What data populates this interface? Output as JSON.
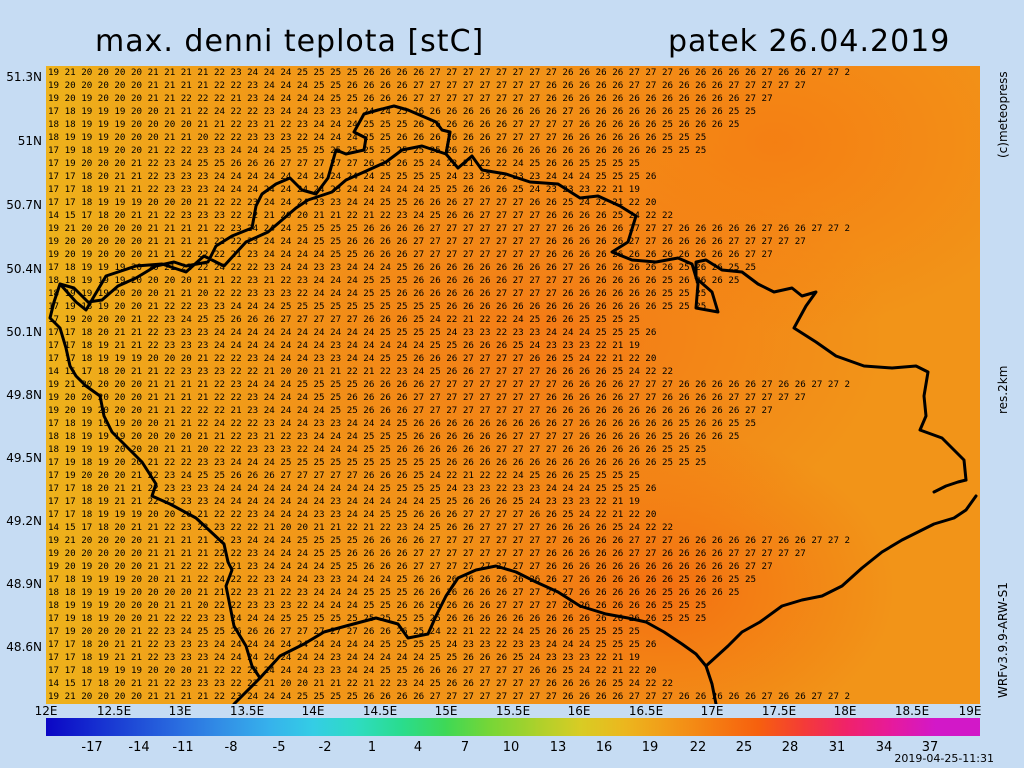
{
  "header": {
    "title": "max. denni teplota [stC]",
    "date": "patek 26.04.2019"
  },
  "side": {
    "copyright": "(c)meteopress",
    "resolution": "res.2km",
    "model": "WRFv3.9.9-ARW-S1"
  },
  "axes": {
    "lat_labels": [
      "51.3N",
      "51N",
      "50.7N",
      "50.4N",
      "50.1N",
      "49.8N",
      "49.5N",
      "49.2N",
      "48.9N",
      "48.6N"
    ],
    "lon_labels": [
      "12E",
      "12.5E",
      "13E",
      "13.5E",
      "14E",
      "14.5E",
      "15E",
      "15.5E",
      "16E",
      "16.5E",
      "17E",
      "17.5E",
      "18E",
      "18.5E",
      "19E"
    ],
    "lat_range": [
      48.3,
      51.4
    ],
    "lon_range": [
      12,
      19
    ]
  },
  "colorbar": {
    "labels": [
      "-17",
      "-14",
      "-11",
      "-8",
      "-5",
      "-2",
      "1",
      "4",
      "7",
      "10",
      "13",
      "16",
      "19",
      "22",
      "25",
      "28",
      "31",
      "34",
      "37"
    ],
    "colors": [
      "#0b06c4",
      "#1429cf",
      "#1f4cd7",
      "#2a6ee0",
      "#3290e6",
      "#36b1ec",
      "#34cde5",
      "#2edcc1",
      "#2adc8d",
      "#3fd855",
      "#78d636",
      "#aad12c",
      "#d8cc24",
      "#ecb71e",
      "#f29a18",
      "#f57d12",
      "#f6600e",
      "#f43c36",
      "#f0226a",
      "#e61a9c",
      "#d218c8"
    ]
  },
  "footer": {
    "run_stamp": "2019-04-25-11:31"
  },
  "map_data": {
    "field": "max daily temperature",
    "unit": "stC",
    "grid_columns": 57,
    "grid_rows": 50,
    "sample_rows": [
      "19 21 20 20 20 20 21 21 21 21 22 23 24 24 24 25 25 25 25 26 26 26 26 27 27 27 27 27 27 27 27 26 26 26 26 27 27 27 26 26 26 26 26 27 26 26 27 27 2",
      "19 20 20 20 20 20 21 21 21 21 22 22 23 24 24 24 25 25 26 26 26 26 27 27 27 27 27 27 27 27 26 26 26 26 26 27 27 26 26 26 26 27 27 27 27 27",
      "19 20 19 20 20 20 21 21 22 22 22 21 23 24 24 24 24 25 25 26 26 26 27 27 27 27 27 27 27 27 26 26 26 26 26 26 26 26 26 26 26 26 27 27",
      "17 18 19 19 19 20 20 21 21 22 24 22 22 23 24 24 23 23 24 24 24 25 26 26 26 26 26 26 26 26 26 27 26 26 26 26 26 26 25 26 26 25 25",
      "18 18 19 19 19 20 20 20 20 21 21 22 23 21 22 23 24 24 24 25 25 25 26 26 26 26 26 26 27 27 27 27 26 26 26 26 26 25 26 26 26 25",
      "18 19 19 19 20 20 20 21 21 20 22 22 23 23 23 22 24 24 24 25 25 26 26 26 26 26 26 27 27 27 27 26 26 26 26 26 26 25 25 25",
      "17 19 18 19 20 20 21 22 22 23 23 24 24 24 25 25 25 25 25 25 25 25 25 25 26 26 26 26 26 26 26 26 26 26 26 26 26 25 25 25",
      "17 19 20 20 20 21 22 23 24 25 25 26 26 26 27 27 27 27 27 26 26 26 25 24 22 21 22 22 24 25 26 26 25 25 25 25",
      "17 17 18 20 21 21 22 23 23 23 24 24 24 24 24 24 24 24 24 24 25 25 25 25 24 23 23 22 23 23 24 24 24 25 25 25 26",
      "17 17 18 19 21 21 22 23 23 23 24 24 24 24 24 24 24 23 24 24 24 24 24 25 25 26 26 26 25 24 23 23 23 22 21 19",
      "17 17 18 19 19 19 20 20 20 21 22 22 23 24 24 24 23 23 24 24 25 25 26 26 26 27 27 27 27 26 26 25 24 22 21 22 20",
      "14 15 17 18 20 21 21 22 23 23 23 22 22 21 20 20 21 21 22 21 22 23 24 25 26 26 27 27 27 27 26 26 26 26 25 24 22 22"
    ]
  }
}
